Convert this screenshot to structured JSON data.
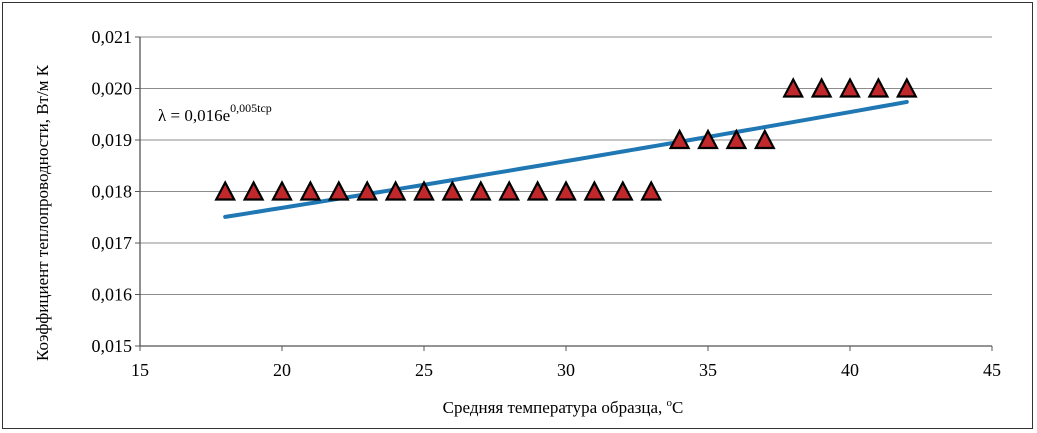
{
  "chart_data": {
    "type": "scatter",
    "xlabel": "Средняя температура образца, ",
    "xlabel_unit": "С",
    "xlabel_degree": "о",
    "ylabel": "Коэффициент теплопроводности, Вт/м К",
    "xlim": [
      15,
      45
    ],
    "ylim": [
      0.015,
      0.021
    ],
    "x_ticks": [
      15,
      20,
      25,
      30,
      35,
      40,
      45
    ],
    "x_tick_labels": [
      "15",
      "20",
      "25",
      "30",
      "35",
      "40",
      "45"
    ],
    "y_ticks": [
      0.015,
      0.016,
      0.017,
      0.018,
      0.019,
      0.02,
      0.021
    ],
    "y_tick_labels": [
      "0,015",
      "0,016",
      "0,017",
      "0,018",
      "0,019",
      "0,020",
      "0,021"
    ],
    "grid": true,
    "series": [
      {
        "marker": "triangle",
        "color": "#c0282b",
        "points": [
          {
            "x": 18,
            "y": 0.018
          },
          {
            "x": 19,
            "y": 0.018
          },
          {
            "x": 20,
            "y": 0.018
          },
          {
            "x": 21,
            "y": 0.018
          },
          {
            "x": 22,
            "y": 0.018
          },
          {
            "x": 23,
            "y": 0.018
          },
          {
            "x": 24,
            "y": 0.018
          },
          {
            "x": 25,
            "y": 0.018
          },
          {
            "x": 26,
            "y": 0.018
          },
          {
            "x": 27,
            "y": 0.018
          },
          {
            "x": 28,
            "y": 0.018
          },
          {
            "x": 29,
            "y": 0.018
          },
          {
            "x": 30,
            "y": 0.018
          },
          {
            "x": 31,
            "y": 0.018
          },
          {
            "x": 32,
            "y": 0.018
          },
          {
            "x": 33,
            "y": 0.018
          },
          {
            "x": 34,
            "y": 0.019
          },
          {
            "x": 35,
            "y": 0.019
          },
          {
            "x": 36,
            "y": 0.019
          },
          {
            "x": 37,
            "y": 0.019
          },
          {
            "x": 38,
            "y": 0.02
          },
          {
            "x": 39,
            "y": 0.02
          },
          {
            "x": 40,
            "y": 0.02
          },
          {
            "x": 41,
            "y": 0.02
          },
          {
            "x": 42,
            "y": 0.02
          }
        ]
      }
    ],
    "trendline": {
      "type": "exponential",
      "color": "#1f77b4",
      "a": 0.016,
      "b": 0.005,
      "x_range": [
        18,
        42
      ],
      "equation_prefix": "λ = 0,016e",
      "equation_exponent": "0,005tср"
    }
  }
}
